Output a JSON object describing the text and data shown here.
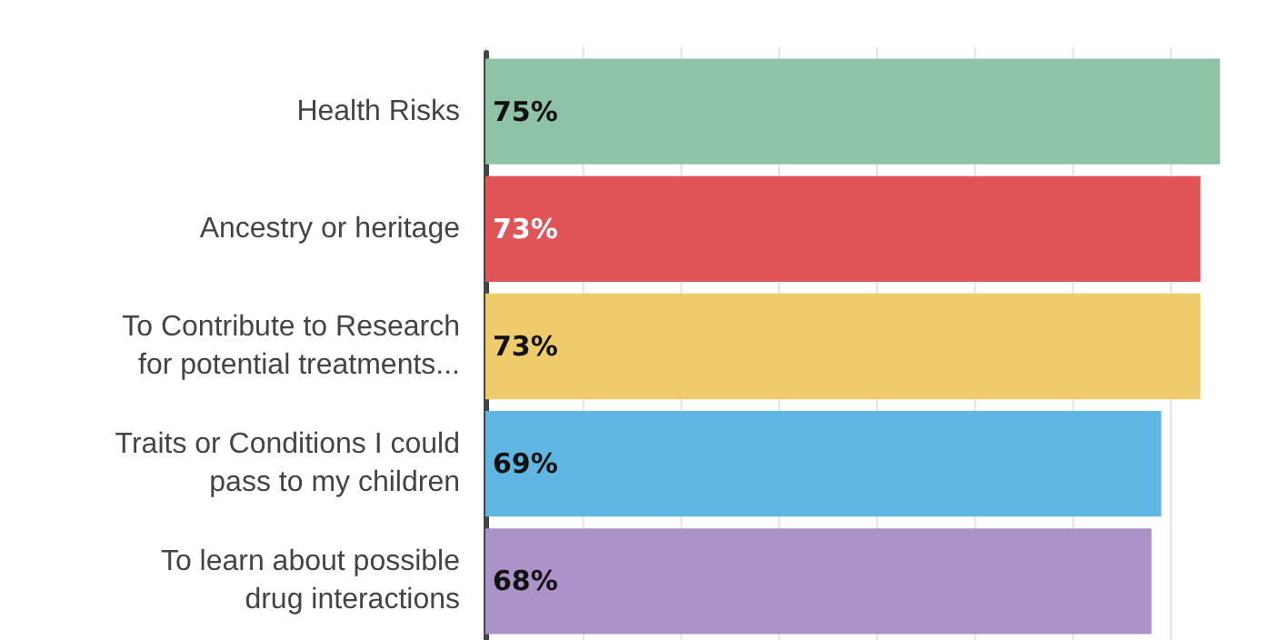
{
  "chart_data": {
    "type": "bar",
    "orientation": "horizontal",
    "categories": [
      "Health Risks",
      "Ancestry or heritage",
      "To Contribute to Research\nfor potential treatments...",
      "Traits or Conditions I could\npass to my children",
      "To learn about possible\ndrug interactions"
    ],
    "values": [
      75,
      73,
      73,
      69,
      68
    ],
    "colors": [
      "#8fc3a8",
      "#e05458",
      "#efcb6b",
      "#5fb6e3",
      "#ab92c8"
    ],
    "value_labels": [
      "75%",
      "73%",
      "73%",
      "69%",
      "68%"
    ],
    "xticks": [
      {
        "value": 0,
        "label": null
      },
      {
        "value": 10,
        "label": null
      },
      {
        "value": 20,
        "label": null
      },
      {
        "value": 30,
        "label": null
      },
      {
        "value": 40,
        "label": null
      },
      {
        "value": 50,
        "label": null
      },
      {
        "value": 60,
        "label": null
      },
      {
        "value": 70,
        "label": null
      }
    ],
    "grid": "x",
    "tick_labels": "y"
  }
}
